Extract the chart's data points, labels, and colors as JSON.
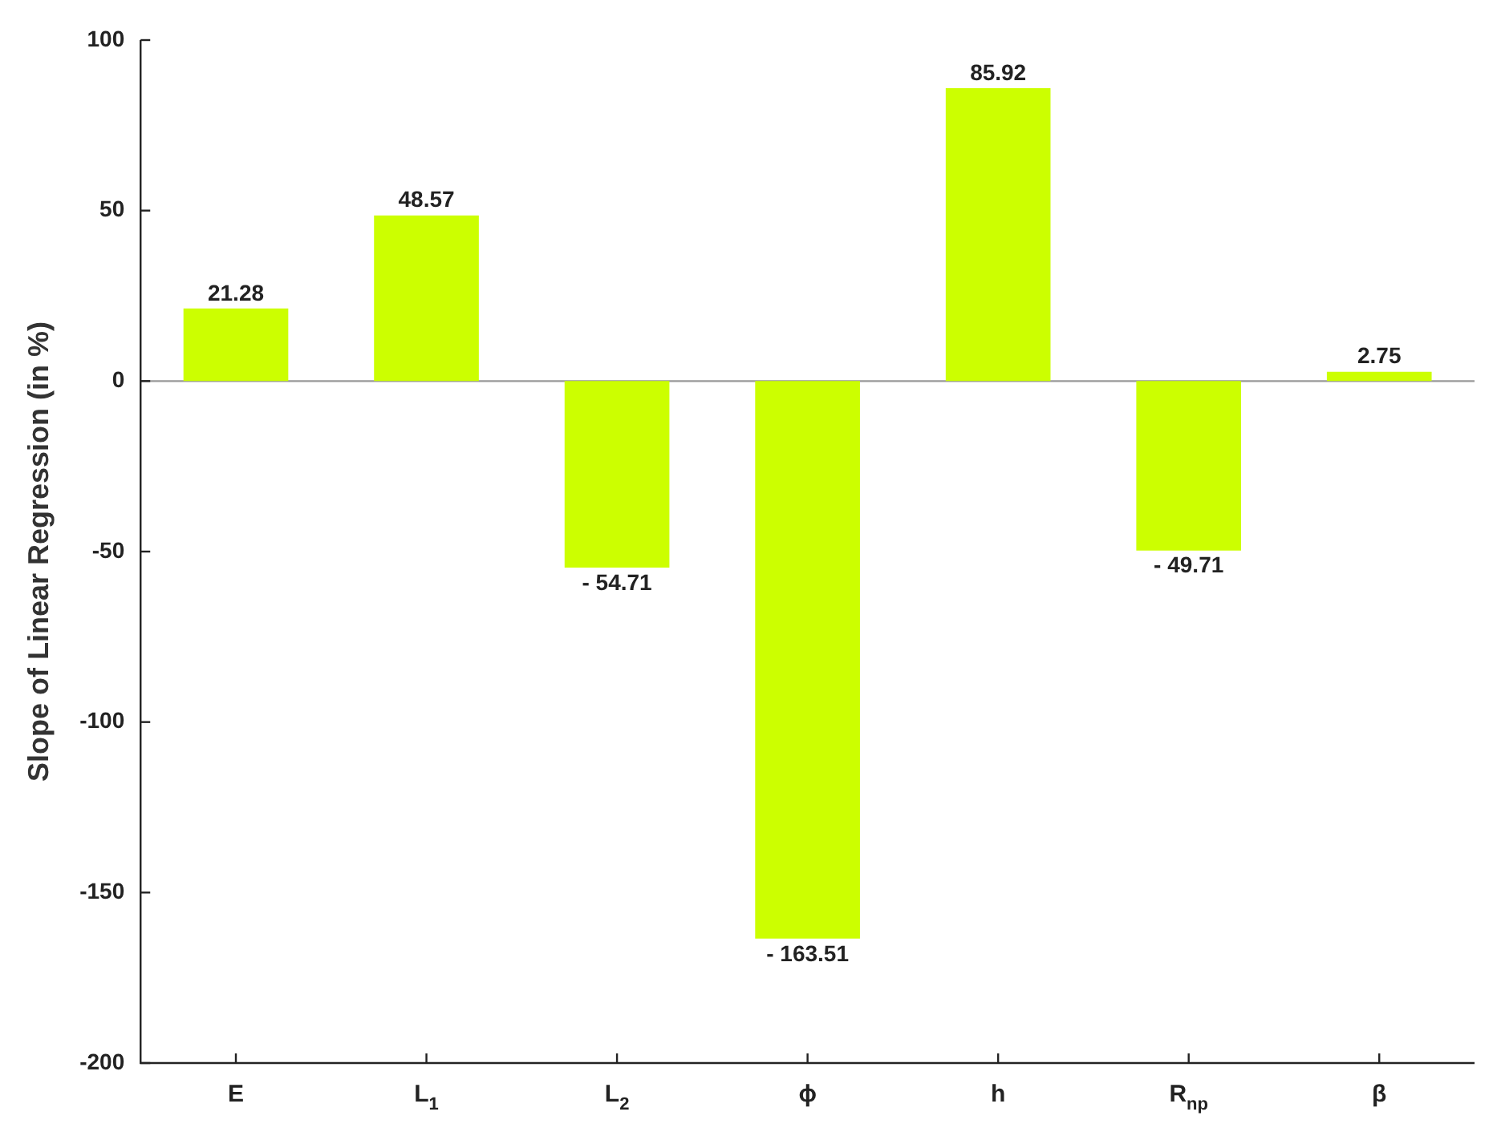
{
  "chart_data": {
    "type": "bar",
    "ylabel": "Slope of Linear Regression (in %)",
    "categories": [
      "E",
      "L$_{1}$",
      "L$_{2}$",
      "ϕ",
      "h",
      "R$_{np}$",
      "β"
    ],
    "values": [
      21.28,
      48.57,
      -54.71,
      -163.51,
      85.92,
      -49.71,
      2.75
    ],
    "value_labels": [
      "21.28",
      "48.57",
      "- 54.71",
      "- 163.51",
      "85.92",
      "- 49.71",
      "2.75"
    ],
    "color": "#ccff00",
    "ylim": [
      -200,
      100
    ],
    "yticks": [
      -200,
      -150,
      -100,
      -50,
      0,
      50,
      100
    ],
    "ref_lines": [
      {
        "axis": "y",
        "value": 0,
        "color": "#999999"
      }
    ],
    "grid": false,
    "legend": false
  }
}
